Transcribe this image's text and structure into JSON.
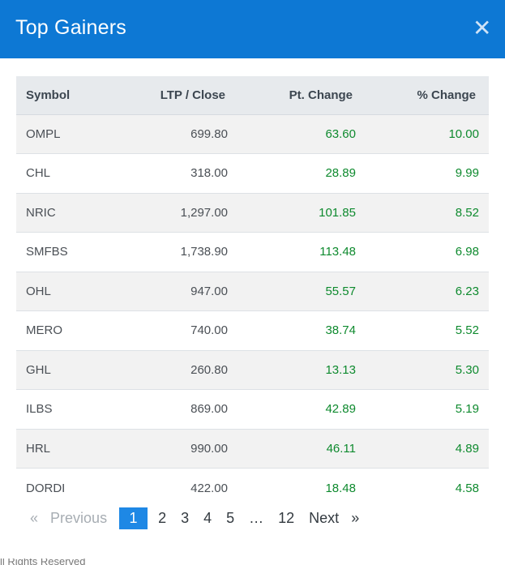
{
  "header": {
    "title": "Top Gainers",
    "close_glyph": "✕",
    "close_icon": "close-icon"
  },
  "table": {
    "columns": [
      "Symbol",
      "LTP / Close",
      "Pt. Change",
      "% Change"
    ],
    "rows": [
      {
        "symbol": "OMPL",
        "ltp": "699.80",
        "pt_change": "63.60",
        "pct_change": "10.00"
      },
      {
        "symbol": "CHL",
        "ltp": "318.00",
        "pt_change": "28.89",
        "pct_change": "9.99"
      },
      {
        "symbol": "NRIC",
        "ltp": "1,297.00",
        "pt_change": "101.85",
        "pct_change": "8.52"
      },
      {
        "symbol": "SMFBS",
        "ltp": "1,738.90",
        "pt_change": "113.48",
        "pct_change": "6.98"
      },
      {
        "symbol": "OHL",
        "ltp": "947.00",
        "pt_change": "55.57",
        "pct_change": "6.23"
      },
      {
        "symbol": "MERO",
        "ltp": "740.00",
        "pt_change": "38.74",
        "pct_change": "5.52"
      },
      {
        "symbol": "GHL",
        "ltp": "260.80",
        "pt_change": "13.13",
        "pct_change": "5.30"
      },
      {
        "symbol": "ILBS",
        "ltp": "869.00",
        "pt_change": "42.89",
        "pct_change": "5.19"
      },
      {
        "symbol": "HRL",
        "ltp": "990.00",
        "pt_change": "46.11",
        "pct_change": "4.89"
      },
      {
        "symbol": "DORDI",
        "ltp": "422.00",
        "pt_change": "18.48",
        "pct_change": "4.58"
      }
    ]
  },
  "pagination": {
    "prev_arrow": "«",
    "previous": "Previous",
    "pages": [
      "1",
      "2",
      "3",
      "4",
      "5"
    ],
    "ellipsis": "…",
    "last_page": "12",
    "next": "Next",
    "next_arrow": "»",
    "current_page": "1"
  },
  "colors": {
    "header_bg": "#0d78d4",
    "positive": "#0e8a2e",
    "active_page": "#1e88e5"
  },
  "footer_peek": "ll Rights Reserved"
}
